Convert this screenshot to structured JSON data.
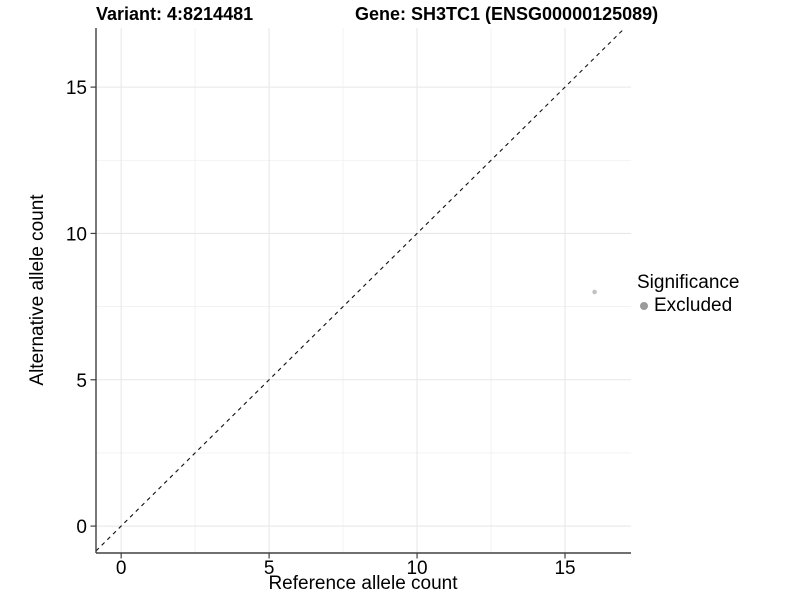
{
  "chart_data": {
    "type": "scatter",
    "title_left": "Variant: 4:8214481",
    "title_right": "Gene: SH3TC1 (ENSG00000125089)",
    "xlabel": "Reference allele count",
    "ylabel": "Alternative allele count",
    "xlim": [
      -0.85,
      17.23
    ],
    "ylim": [
      -0.92,
      17.02
    ],
    "x_major_ticks": [
      0,
      5,
      10,
      15
    ],
    "y_major_ticks": [
      0,
      5,
      10,
      15
    ],
    "x_minor_ticks": [
      2.5,
      7.5,
      12.5
    ],
    "y_minor_ticks": [
      2.5,
      7.5,
      12.5
    ],
    "grid": true,
    "points": [
      {
        "x": 16,
        "y": 8,
        "series": "Excluded"
      }
    ],
    "reference_line": {
      "type": "identity",
      "slope": 1,
      "intercept": 0,
      "style": "dashed"
    },
    "legend": {
      "title": "Significance",
      "position": "right",
      "items": [
        {
          "label": "Excluded",
          "color": "#9b9b9b"
        }
      ]
    },
    "colors": {
      "point": "#c2c2c2",
      "grid_major": "#e8e8e8",
      "grid_minor": "#f1f1f1",
      "axis": "#404040",
      "tick_text": "#000000",
      "dashed_line": "#111111"
    }
  }
}
